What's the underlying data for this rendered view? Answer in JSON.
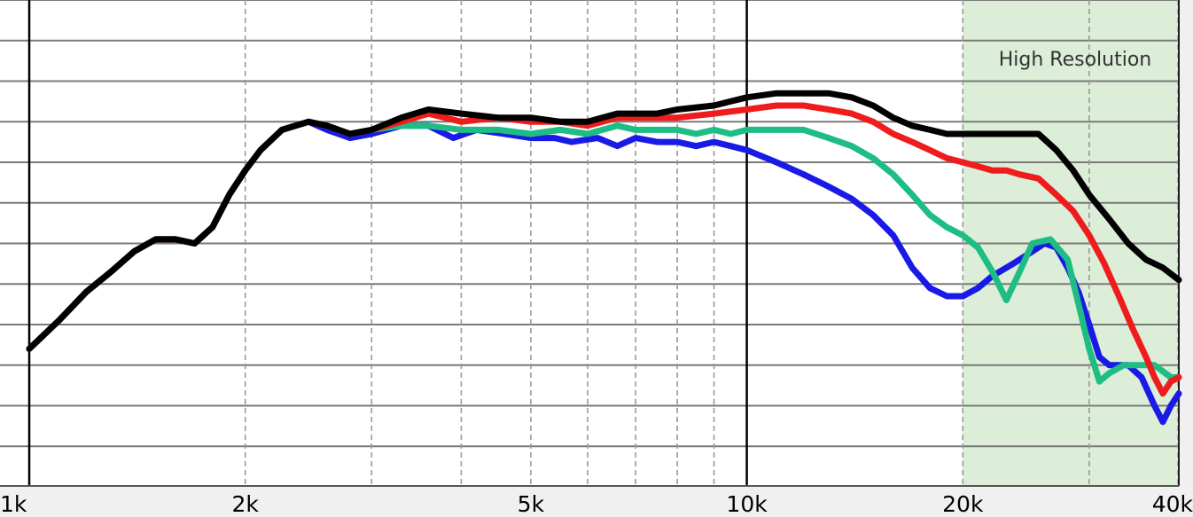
{
  "chart_data": {
    "type": "line",
    "x_scale": "log",
    "xlim": [
      1000,
      40000
    ],
    "y_grid_lines": 12,
    "grid": true,
    "x_ticks": [
      {
        "value": 1000,
        "label": "1k"
      },
      {
        "value": 2000,
        "label": "2k"
      },
      {
        "value": 5000,
        "label": "5k"
      },
      {
        "value": 10000,
        "label": "10k"
      },
      {
        "value": 20000,
        "label": "20k"
      },
      {
        "value": 40000,
        "label": "40k"
      }
    ],
    "major_x_lines": [
      1000,
      10000
    ],
    "minor_x_lines": [
      2000,
      3000,
      4000,
      5000,
      6000,
      7000,
      8000,
      9000,
      20000,
      30000,
      40000
    ],
    "highlight_region": {
      "from": 20000,
      "to": 40000,
      "label": "High Resolution",
      "color": "#dcedd8"
    },
    "series": [
      {
        "color": "#1a1ae6",
        "points": [
          [
            1000,
            -4.6
          ],
          [
            1100,
            -3.9
          ],
          [
            1200,
            -3.2
          ],
          [
            1300,
            -2.7
          ],
          [
            1400,
            -2.2
          ],
          [
            1500,
            -1.9
          ],
          [
            1600,
            -1.9
          ],
          [
            1700,
            -2.0
          ],
          [
            1800,
            -1.6
          ],
          [
            1900,
            -0.8
          ],
          [
            2000,
            -0.2
          ],
          [
            2100,
            0.3
          ],
          [
            2250,
            0.8
          ],
          [
            2450,
            1.0
          ],
          [
            2600,
            0.8
          ],
          [
            2800,
            0.6
          ],
          [
            3000,
            0.7
          ],
          [
            3300,
            0.9
          ],
          [
            3600,
            0.9
          ],
          [
            3900,
            0.6
          ],
          [
            4200,
            0.8
          ],
          [
            4600,
            0.7
          ],
          [
            5000,
            0.6
          ],
          [
            5400,
            0.6
          ],
          [
            5700,
            0.5
          ],
          [
            6200,
            0.6
          ],
          [
            6600,
            0.4
          ],
          [
            7000,
            0.6
          ],
          [
            7500,
            0.5
          ],
          [
            8000,
            0.5
          ],
          [
            8500,
            0.4
          ],
          [
            9000,
            0.5
          ],
          [
            9500,
            0.4
          ],
          [
            10000,
            0.3
          ],
          [
            11000,
            0.0
          ],
          [
            12000,
            -0.3
          ],
          [
            13000,
            -0.6
          ],
          [
            14000,
            -0.9
          ],
          [
            15000,
            -1.3
          ],
          [
            16000,
            -1.8
          ],
          [
            17000,
            -2.6
          ],
          [
            18000,
            -3.1
          ],
          [
            19000,
            -3.3
          ],
          [
            20000,
            -3.3
          ],
          [
            21000,
            -3.1
          ],
          [
            22000,
            -2.8
          ],
          [
            23500,
            -2.5
          ],
          [
            25000,
            -2.2
          ],
          [
            26000,
            -2.0
          ],
          [
            27000,
            -2.1
          ],
          [
            28000,
            -2.6
          ],
          [
            29000,
            -3.2
          ],
          [
            30000,
            -4.0
          ],
          [
            31000,
            -4.8
          ],
          [
            32000,
            -5.0
          ],
          [
            34000,
            -5.0
          ],
          [
            35500,
            -5.3
          ],
          [
            37000,
            -6.0
          ],
          [
            38000,
            -6.4
          ],
          [
            39000,
            -6.0
          ],
          [
            40000,
            -5.7
          ]
        ]
      },
      {
        "color": "#1dbd83",
        "points": [
          [
            1000,
            -4.6
          ],
          [
            1100,
            -3.9
          ],
          [
            1200,
            -3.2
          ],
          [
            1300,
            -2.7
          ],
          [
            1400,
            -2.2
          ],
          [
            1500,
            -1.9
          ],
          [
            1600,
            -1.9
          ],
          [
            1700,
            -2.0
          ],
          [
            1800,
            -1.6
          ],
          [
            1900,
            -0.8
          ],
          [
            2000,
            -0.2
          ],
          [
            2100,
            0.3
          ],
          [
            2250,
            0.8
          ],
          [
            2450,
            1.0
          ],
          [
            2600,
            0.9
          ],
          [
            2800,
            0.7
          ],
          [
            3000,
            0.8
          ],
          [
            3300,
            0.9
          ],
          [
            3600,
            0.9
          ],
          [
            4000,
            0.8
          ],
          [
            4500,
            0.8
          ],
          [
            5000,
            0.7
          ],
          [
            5500,
            0.8
          ],
          [
            6000,
            0.7
          ],
          [
            6600,
            0.9
          ],
          [
            7000,
            0.8
          ],
          [
            8000,
            0.8
          ],
          [
            8500,
            0.7
          ],
          [
            9000,
            0.8
          ],
          [
            9500,
            0.7
          ],
          [
            10000,
            0.8
          ],
          [
            11000,
            0.8
          ],
          [
            12000,
            0.8
          ],
          [
            13000,
            0.6
          ],
          [
            14000,
            0.4
          ],
          [
            15000,
            0.1
          ],
          [
            16000,
            -0.3
          ],
          [
            17000,
            -0.8
          ],
          [
            18000,
            -1.3
          ],
          [
            19000,
            -1.6
          ],
          [
            20000,
            -1.8
          ],
          [
            21000,
            -2.1
          ],
          [
            22000,
            -2.7
          ],
          [
            23000,
            -3.4
          ],
          [
            24000,
            -2.7
          ],
          [
            25000,
            -2.0
          ],
          [
            26500,
            -1.9
          ],
          [
            28000,
            -2.4
          ],
          [
            29000,
            -3.5
          ],
          [
            30000,
            -4.6
          ],
          [
            31000,
            -5.4
          ],
          [
            32000,
            -5.2
          ],
          [
            33500,
            -5.0
          ],
          [
            35000,
            -5.0
          ],
          [
            37000,
            -5.0
          ],
          [
            39000,
            -5.3
          ],
          [
            40000,
            -5.3
          ]
        ]
      },
      {
        "color": "#ee1c1c",
        "points": [
          [
            1000,
            -4.6
          ],
          [
            1100,
            -3.9
          ],
          [
            1200,
            -3.2
          ],
          [
            1300,
            -2.7
          ],
          [
            1400,
            -2.2
          ],
          [
            1500,
            -1.9
          ],
          [
            1600,
            -1.9
          ],
          [
            1700,
            -2.0
          ],
          [
            1800,
            -1.6
          ],
          [
            1900,
            -0.8
          ],
          [
            2000,
            -0.2
          ],
          [
            2100,
            0.3
          ],
          [
            2250,
            0.8
          ],
          [
            2450,
            1.0
          ],
          [
            2600,
            0.9
          ],
          [
            2800,
            0.7
          ],
          [
            3000,
            0.8
          ],
          [
            3300,
            1.0
          ],
          [
            3600,
            1.2
          ],
          [
            4000,
            1.0
          ],
          [
            4500,
            1.1
          ],
          [
            5000,
            1.0
          ],
          [
            5500,
            1.0
          ],
          [
            6000,
            0.9
          ],
          [
            6600,
            1.1
          ],
          [
            7000,
            1.1
          ],
          [
            7500,
            1.1
          ],
          [
            8000,
            1.1
          ],
          [
            9000,
            1.2
          ],
          [
            10000,
            1.3
          ],
          [
            11000,
            1.4
          ],
          [
            12000,
            1.4
          ],
          [
            13000,
            1.3
          ],
          [
            14000,
            1.2
          ],
          [
            15000,
            1.0
          ],
          [
            16000,
            0.7
          ],
          [
            17000,
            0.5
          ],
          [
            18000,
            0.3
          ],
          [
            19000,
            0.1
          ],
          [
            20000,
            0.0
          ],
          [
            21000,
            -0.1
          ],
          [
            22000,
            -0.2
          ],
          [
            23000,
            -0.2
          ],
          [
            24000,
            -0.3
          ],
          [
            25500,
            -0.4
          ],
          [
            27000,
            -0.8
          ],
          [
            28500,
            -1.2
          ],
          [
            30000,
            -1.8
          ],
          [
            31500,
            -2.5
          ],
          [
            33000,
            -3.3
          ],
          [
            34500,
            -4.1
          ],
          [
            36000,
            -4.8
          ],
          [
            37000,
            -5.3
          ],
          [
            38000,
            -5.7
          ],
          [
            39000,
            -5.4
          ],
          [
            40000,
            -5.3
          ]
        ]
      },
      {
        "color": "#000000",
        "points": [
          [
            1000,
            -4.6
          ],
          [
            1100,
            -3.9
          ],
          [
            1200,
            -3.2
          ],
          [
            1300,
            -2.7
          ],
          [
            1400,
            -2.2
          ],
          [
            1500,
            -1.9
          ],
          [
            1600,
            -1.9
          ],
          [
            1700,
            -2.0
          ],
          [
            1800,
            -1.6
          ],
          [
            1900,
            -0.8
          ],
          [
            2000,
            -0.2
          ],
          [
            2100,
            0.3
          ],
          [
            2250,
            0.8
          ],
          [
            2450,
            1.0
          ],
          [
            2600,
            0.9
          ],
          [
            2800,
            0.7
          ],
          [
            3000,
            0.8
          ],
          [
            3300,
            1.1
          ],
          [
            3600,
            1.3
          ],
          [
            4000,
            1.2
          ],
          [
            4500,
            1.1
          ],
          [
            5000,
            1.1
          ],
          [
            5500,
            1.0
          ],
          [
            6000,
            1.0
          ],
          [
            6600,
            1.2
          ],
          [
            7000,
            1.2
          ],
          [
            7500,
            1.2
          ],
          [
            8000,
            1.3
          ],
          [
            9000,
            1.4
          ],
          [
            10000,
            1.6
          ],
          [
            11000,
            1.7
          ],
          [
            12000,
            1.7
          ],
          [
            13000,
            1.7
          ],
          [
            14000,
            1.6
          ],
          [
            15000,
            1.4
          ],
          [
            16000,
            1.1
          ],
          [
            17000,
            0.9
          ],
          [
            18000,
            0.8
          ],
          [
            19000,
            0.7
          ],
          [
            20000,
            0.7
          ],
          [
            22000,
            0.7
          ],
          [
            24000,
            0.7
          ],
          [
            25500,
            0.7
          ],
          [
            27000,
            0.3
          ],
          [
            28500,
            -0.2
          ],
          [
            30000,
            -0.8
          ],
          [
            32000,
            -1.4
          ],
          [
            34000,
            -2.0
          ],
          [
            36000,
            -2.4
          ],
          [
            38000,
            -2.6
          ],
          [
            40000,
            -2.9
          ]
        ]
      }
    ]
  }
}
